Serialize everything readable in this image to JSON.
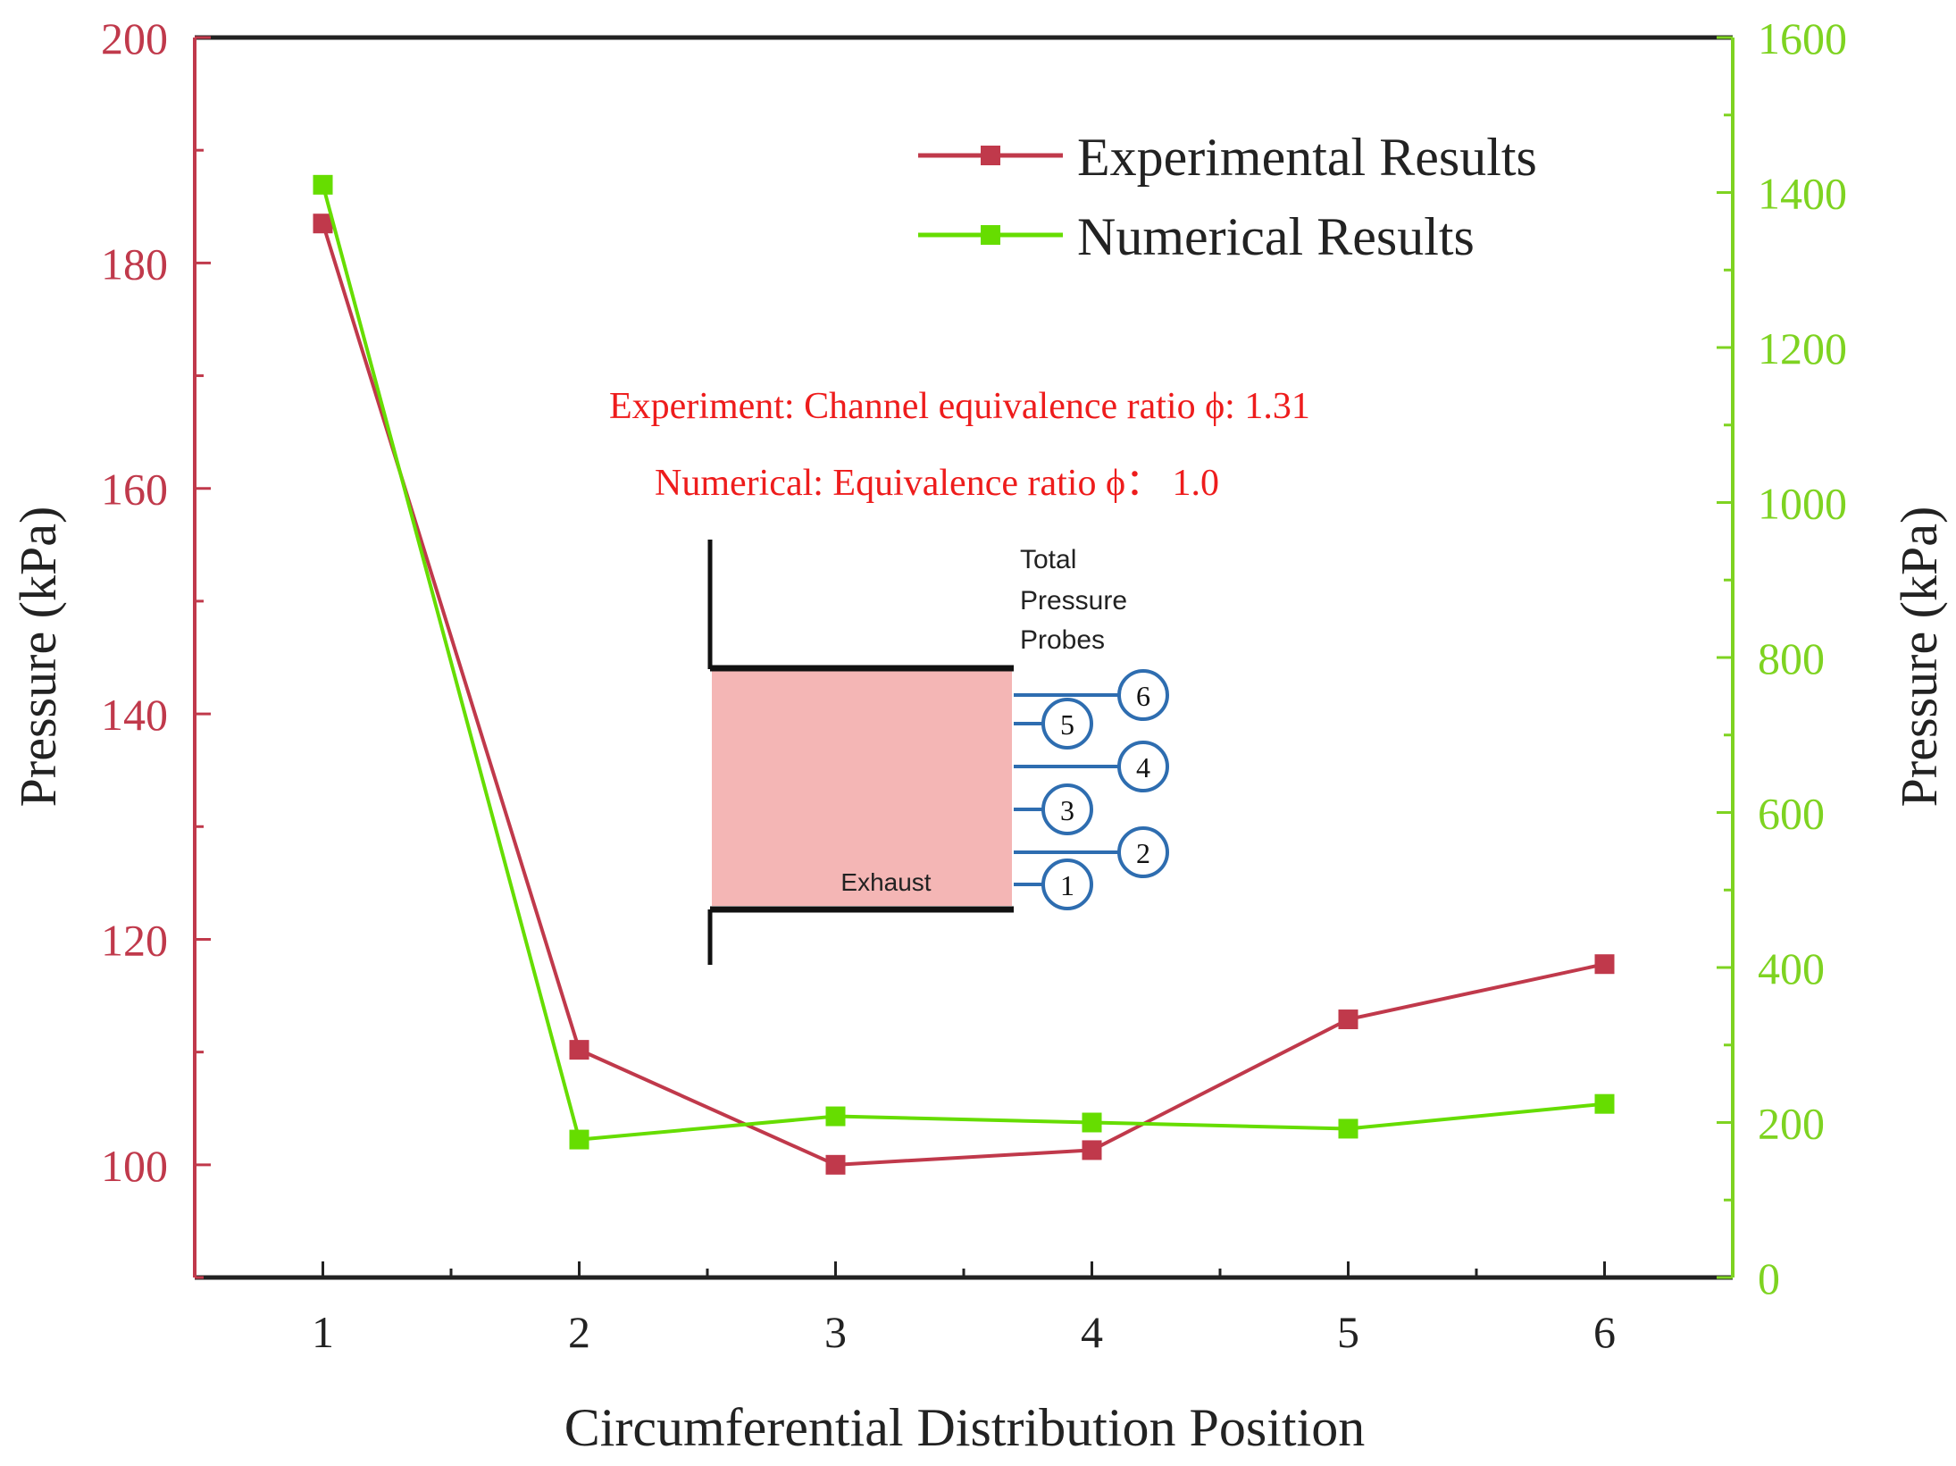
{
  "chart_data": {
    "type": "line",
    "xlabel": "Circumferential Distribution Position",
    "x": [
      1,
      2,
      3,
      4,
      5,
      6
    ],
    "xlim": [
      0.5,
      6.5
    ],
    "x_ticks": [
      "1",
      "2",
      "3",
      "4",
      "5",
      "6"
    ],
    "left_axis": {
      "label": "Pressure (kPa)",
      "color": "#c0394b",
      "ylim": [
        90,
        200
      ],
      "ticks": [
        100,
        120,
        140,
        160,
        180,
        200
      ]
    },
    "right_axis": {
      "label": "Pressure (kPa)",
      "color": "#7ed321",
      "ylim": [
        0,
        1600
      ],
      "ticks": [
        0,
        200,
        400,
        600,
        800,
        1000,
        1200,
        1400,
        1600
      ]
    },
    "series": [
      {
        "name": "Experimental Results",
        "axis": "left",
        "color": "#c0394b",
        "values": [
          183.5,
          110.2,
          100.0,
          101.3,
          112.9,
          117.8
        ]
      },
      {
        "name": "Numerical Results",
        "axis": "right",
        "color": "#66dd00",
        "values": [
          1410,
          178,
          208,
          200,
          192,
          224
        ]
      }
    ],
    "legend_position": "top-right",
    "annotations": [
      "Experiment: Channel equivalence ratio ϕ: 1.31",
      "Numerical: Equivalence ratio ϕ： 1.0"
    ],
    "inset": {
      "title_lines": [
        "Total",
        "Pressure",
        "Probes"
      ],
      "region_label": "Exhaust",
      "probes": [
        "1",
        "2",
        "3",
        "4",
        "5",
        "6"
      ]
    }
  }
}
